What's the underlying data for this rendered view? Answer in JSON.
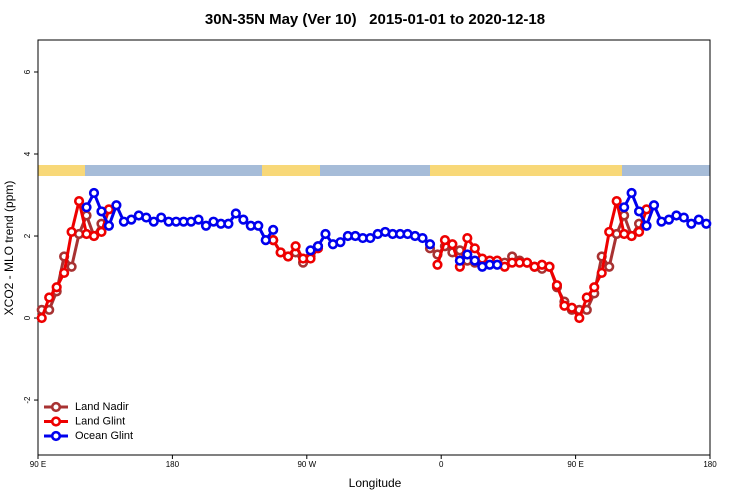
{
  "chart_data": {
    "type": "line",
    "title": "30N-35N May (Ver 10)   2015-01-01 to 2020-12-18",
    "x_label": "Longitude",
    "y_label": "XCO2 - MLO trend (ppm)",
    "xlim": [
      90,
      540
    ],
    "ylim": [
      -3.34,
      6.78
    ],
    "xticks": [
      {
        "value": 90,
        "label": "90 E"
      },
      180,
      {
        "value": 270,
        "label": "90 W"
      },
      {
        "value": 360,
        "label": "0"
      },
      {
        "value": 450,
        "label": "90 E"
      },
      {
        "value": 540,
        "label": "180"
      }
    ],
    "yticks": [
      -2,
      0,
      2,
      4,
      6
    ],
    "legend": "bottom-left",
    "x": [
      92.5,
      97.5,
      102.5,
      107.5,
      112.5,
      117.5,
      122.5,
      127.5,
      132.5,
      137.5,
      142.5,
      147.5,
      152.5,
      157.5,
      162.5,
      167.5,
      172.5,
      177.5,
      182.5,
      187.5,
      192.5,
      197.5,
      202.5,
      207.5,
      212.5,
      217.5,
      222.5,
      227.5,
      232.5,
      237.5,
      242.5,
      247.5,
      252.5,
      257.5,
      262.5,
      267.5,
      272.5,
      277.5,
      282.5,
      287.5,
      292.5,
      297.5,
      302.5,
      307.5,
      312.5,
      317.5,
      322.5,
      327.5,
      332.5,
      337.5,
      342.5,
      347.5,
      352.5,
      357.5,
      362.5,
      367.5,
      372.5,
      377.5,
      382.5,
      387.5,
      392.5,
      397.5,
      402.5,
      407.5,
      412.5,
      417.5,
      422.5,
      427.5,
      432.5,
      437.5,
      442.5,
      447.5,
      452.5,
      457.5,
      462.5,
      467.5,
      472.5,
      477.5,
      482.5,
      487.5,
      492.5,
      497.5,
      502.5,
      507.5,
      512.5,
      517.5,
      522.5,
      527.5,
      532.5,
      537.5
    ],
    "series": [
      {
        "name": "Land Nadir",
        "color": "#a83232",
        "values": [
          0.2,
          0.2,
          0.65,
          1.5,
          1.25,
          2.05,
          2.5,
          2.0,
          2.3,
          null,
          null,
          null,
          null,
          null,
          null,
          null,
          null,
          null,
          null,
          null,
          null,
          null,
          null,
          null,
          null,
          null,
          null,
          null,
          null,
          null,
          null,
          1.9,
          1.6,
          1.5,
          1.6,
          1.35,
          1.5,
          1.75,
          null,
          null,
          null,
          null,
          null,
          null,
          null,
          null,
          null,
          null,
          null,
          null,
          null,
          null,
          1.7,
          1.55,
          1.75,
          1.6,
          1.65,
          1.4,
          1.35,
          1.35,
          1.35,
          1.35,
          1.35,
          1.5,
          1.4,
          1.35,
          1.25,
          1.2,
          1.25,
          0.75,
          0.4,
          0.2,
          0.2,
          0.2,
          0.6,
          1.5,
          1.25,
          2.05,
          2.5,
          2.0,
          2.3,
          null,
          null,
          null,
          null,
          null,
          null,
          null,
          null,
          null
        ]
      },
      {
        "name": "Land Glint",
        "color": "#ee0000",
        "values": [
          0,
          0.5,
          0.75,
          1.1,
          2.1,
          2.85,
          2.05,
          2.0,
          2.1,
          2.65,
          null,
          null,
          null,
          null,
          null,
          null,
          null,
          null,
          null,
          null,
          null,
          null,
          null,
          null,
          null,
          null,
          null,
          null,
          null,
          null,
          null,
          1.9,
          1.6,
          1.5,
          1.75,
          1.45,
          1.45,
          1.7,
          null,
          null,
          null,
          null,
          null,
          null,
          null,
          null,
          null,
          null,
          null,
          null,
          null,
          null,
          null,
          1.3,
          1.9,
          1.8,
          1.25,
          1.95,
          1.7,
          1.45,
          1.4,
          1.4,
          1.25,
          1.35,
          1.35,
          1.35,
          1.25,
          1.3,
          1.25,
          0.8,
          0.3,
          0.25,
          0,
          0.5,
          0.75,
          1.1,
          2.1,
          2.85,
          2.05,
          2.0,
          2.1,
          2.65,
          null,
          null,
          null,
          null,
          null,
          null,
          null,
          null
        ]
      },
      {
        "name": "Ocean Glint",
        "color": "#0000ee",
        "values": [
          null,
          null,
          null,
          null,
          null,
          null,
          2.7,
          3.05,
          2.6,
          2.25,
          2.75,
          2.35,
          2.4,
          2.5,
          2.45,
          2.35,
          2.45,
          2.35,
          2.35,
          2.35,
          2.35,
          2.4,
          2.25,
          2.35,
          2.3,
          2.3,
          2.55,
          2.4,
          2.25,
          2.25,
          1.9,
          2.15,
          null,
          null,
          null,
          null,
          1.65,
          1.75,
          2.05,
          1.8,
          1.85,
          2.0,
          2.0,
          1.95,
          1.95,
          2.05,
          2.1,
          2.05,
          2.05,
          2.05,
          2.0,
          1.95,
          1.8,
          null,
          null,
          null,
          1.4,
          1.55,
          1.4,
          1.25,
          1.3,
          1.3,
          null,
          null,
          null,
          null,
          null,
          null,
          null,
          null,
          null,
          null,
          null,
          null,
          null,
          null,
          null,
          null,
          2.7,
          3.05,
          2.6,
          2.25,
          2.75,
          2.35,
          2.4,
          2.5,
          2.45,
          2.3,
          2.4,
          2.3
        ]
      }
    ]
  }
}
